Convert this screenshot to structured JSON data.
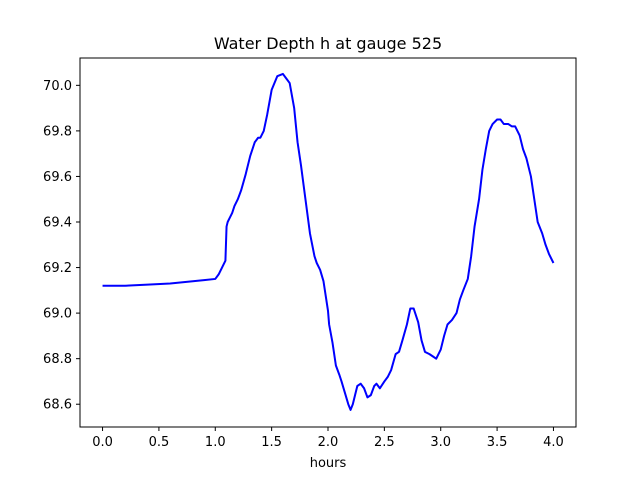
{
  "chart_data": {
    "type": "line",
    "title": "Water Depth h at gauge 525",
    "xlabel": "hours",
    "ylabel": "",
    "xlim": [
      -0.2,
      4.2
    ],
    "ylim": [
      68.5,
      70.12
    ],
    "xticks": [
      0.0,
      0.5,
      1.0,
      1.5,
      2.0,
      2.5,
      3.0,
      3.5,
      4.0
    ],
    "xtick_labels": [
      "0.0",
      "0.5",
      "1.0",
      "1.5",
      "2.0",
      "2.5",
      "3.0",
      "3.5",
      "4.0"
    ],
    "yticks": [
      68.6,
      68.8,
      69.0,
      69.2,
      69.4,
      69.6,
      69.8,
      70.0
    ],
    "ytick_labels": [
      "68.6",
      "68.8",
      "69.0",
      "69.2",
      "69.4",
      "69.6",
      "69.8",
      "70.0"
    ],
    "grid": false,
    "series": [
      {
        "color": "#0000ff",
        "x": [
          0.0,
          0.2,
          0.4,
          0.6,
          0.7,
          0.8,
          0.9,
          1.0,
          1.03,
          1.06,
          1.09,
          1.1,
          1.11,
          1.13,
          1.15,
          1.17,
          1.2,
          1.23,
          1.27,
          1.31,
          1.35,
          1.38,
          1.4,
          1.43,
          1.46,
          1.5,
          1.55,
          1.6,
          1.63,
          1.66,
          1.7,
          1.73,
          1.76,
          1.8,
          1.84,
          1.88,
          1.9,
          1.93,
          1.96,
          2.0,
          2.01,
          2.04,
          2.07,
          2.1,
          2.12,
          2.15,
          2.18,
          2.2,
          2.22,
          2.24,
          2.26,
          2.29,
          2.32,
          2.35,
          2.38,
          2.41,
          2.43,
          2.46,
          2.5,
          2.53,
          2.56,
          2.6,
          2.63,
          2.66,
          2.7,
          2.73,
          2.76,
          2.8,
          2.83,
          2.86,
          2.9,
          2.93,
          2.96,
          3.0,
          3.03,
          3.06,
          3.1,
          3.14,
          3.17,
          3.2,
          3.24,
          3.27,
          3.3,
          3.34,
          3.37,
          3.4,
          3.43,
          3.46,
          3.5,
          3.53,
          3.56,
          3.6,
          3.63,
          3.66,
          3.7,
          3.73,
          3.76,
          3.8,
          3.83,
          3.86,
          3.9,
          3.93,
          3.96,
          4.0
        ],
        "y": [
          69.12,
          69.12,
          69.125,
          69.13,
          69.135,
          69.14,
          69.145,
          69.15,
          69.17,
          69.2,
          69.23,
          69.38,
          69.4,
          69.42,
          69.44,
          69.47,
          69.5,
          69.54,
          69.61,
          69.69,
          69.75,
          69.77,
          69.77,
          69.8,
          69.87,
          69.98,
          70.04,
          70.05,
          70.03,
          70.01,
          69.9,
          69.75,
          69.65,
          69.5,
          69.35,
          69.25,
          69.22,
          69.19,
          69.14,
          69.01,
          68.95,
          68.87,
          68.77,
          68.73,
          68.7,
          68.65,
          68.6,
          68.575,
          68.6,
          68.64,
          68.68,
          68.69,
          68.67,
          68.63,
          68.64,
          68.68,
          68.69,
          68.67,
          68.7,
          68.72,
          68.75,
          68.82,
          68.83,
          68.88,
          68.95,
          69.02,
          69.02,
          68.96,
          68.88,
          68.83,
          68.82,
          68.81,
          68.8,
          68.84,
          68.9,
          68.95,
          68.97,
          69.0,
          69.06,
          69.1,
          69.15,
          69.25,
          69.38,
          69.5,
          69.63,
          69.72,
          69.8,
          69.83,
          69.85,
          69.85,
          69.83,
          69.83,
          69.82,
          69.82,
          69.78,
          69.72,
          69.68,
          69.6,
          69.5,
          69.4,
          69.35,
          69.3,
          69.26,
          69.22
        ]
      }
    ]
  }
}
